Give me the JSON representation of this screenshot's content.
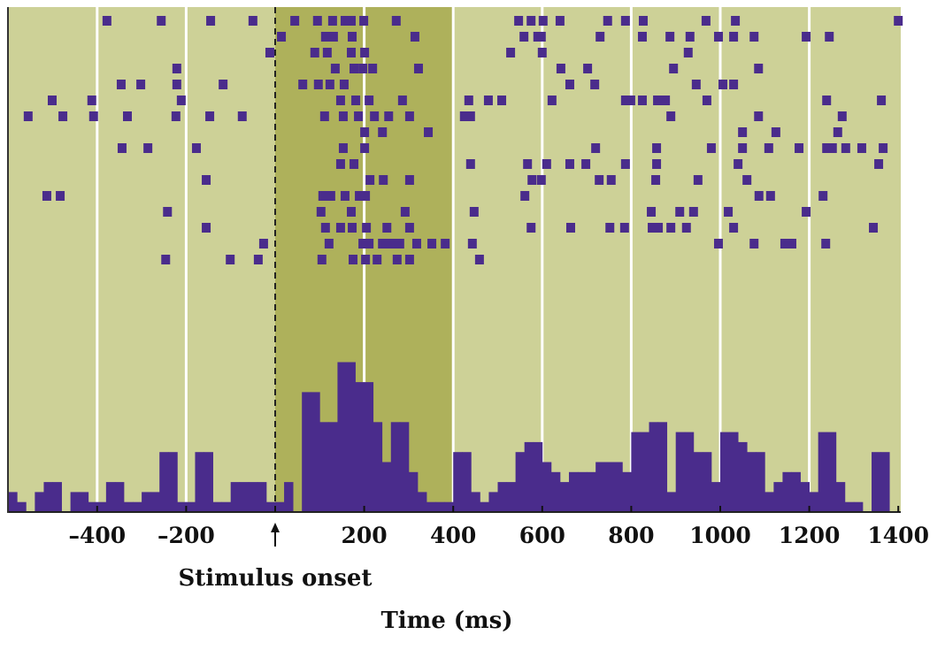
{
  "chart_data": {
    "type": "raster_and_histogram",
    "title": "",
    "xlabel": "Time (ms)",
    "ylabel": "",
    "xlim": [
      -600,
      1410
    ],
    "x_ticks": [
      -400,
      -200,
      200,
      400,
      600,
      800,
      1000,
      1200,
      1400
    ],
    "x_tick_labels": [
      "–400",
      "–200",
      "200",
      "400",
      "600",
      "800",
      "1000",
      "1200",
      "1400"
    ],
    "gridlines_ms": [
      -400,
      -200,
      200,
      400,
      600,
      800,
      1000,
      1200
    ],
    "annotation": {
      "label": "Stimulus onset",
      "x": 0,
      "marker": "up-arrow with dashed line"
    },
    "highlight_window_ms": [
      0,
      400
    ],
    "colors": {
      "background": "#cdd197",
      "highlight": "#aeb15b",
      "spikes": "#4a2c8c",
      "gridline": "#ffffff"
    },
    "raster": {
      "trials": [
        [
          -378,
          -256,
          -145,
          -50,
          44,
          95,
          129,
          157,
          171,
          199,
          272,
          547,
          575,
          602,
          640,
          747,
          787,
          827,
          968,
          1034,
          1400
        ],
        [
          14,
          113,
          131,
          173,
          314,
          559,
          590,
          598,
          730,
          825,
          887,
          932,
          996,
          1030,
          1076,
          1193,
          1245
        ],
        [
          -12,
          89,
          117,
          171,
          201,
          529,
          600,
          928
        ],
        [
          -221,
          135,
          177,
          197,
          219,
          322,
          642,
          702,
          895,
          1086
        ],
        [
          -346,
          -302,
          -221,
          -117,
          62,
          97,
          123,
          155,
          662,
          718,
          946,
          1006,
          1030
        ],
        [
          -501,
          -412,
          -211,
          147,
          181,
          211,
          286,
          435,
          479,
          509,
          622,
          787,
          799,
          825,
          859,
          877,
          970,
          1239,
          1362
        ],
        [
          -555,
          -477,
          -408,
          -332,
          -223,
          -147,
          -74,
          111,
          153,
          187,
          223,
          255,
          302,
          425,
          439,
          889,
          1086,
          1274
        ],
        [
          201,
          241,
          344,
          1050,
          1125,
          1264
        ],
        [
          -344,
          -286,
          -177,
          153,
          201,
          720,
          857,
          980,
          1050,
          1109,
          1177,
          1239,
          1252,
          1282,
          1318,
          1366
        ],
        [
          147,
          177,
          439,
          567,
          610,
          662,
          698,
          787,
          857,
          1040,
          1356
        ],
        [
          -155,
          213,
          243,
          302,
          577,
          598,
          728,
          755,
          855,
          950,
          1060
        ],
        [
          -513,
          -483,
          107,
          125,
          157,
          189,
          203,
          561,
          1087,
          1113,
          1231
        ],
        [
          -242,
          103,
          171,
          292,
          447,
          845,
          909,
          940,
          1018,
          1193
        ],
        [
          -155,
          113,
          147,
          173,
          205,
          251,
          302,
          575,
          664,
          752,
          785,
          847,
          861,
          889,
          924,
          1030,
          1344
        ],
        [
          -26,
          121,
          197,
          211,
          241,
          253,
          270,
          280,
          318,
          352,
          382,
          443,
          996,
          1076,
          1145,
          1161,
          1237
        ],
        [
          -246,
          -101,
          -38,
          105,
          175,
          203,
          229,
          274,
          302,
          459
        ]
      ]
    },
    "histogram": {
      "bin_start_ms": -600,
      "bin_width_ms": 20,
      "counts": [
        2,
        1,
        0,
        2,
        3,
        3,
        0,
        2,
        2,
        1,
        1,
        3,
        3,
        1,
        1,
        2,
        2,
        6,
        6,
        1,
        1,
        6,
        6,
        1,
        1,
        3,
        3,
        3,
        3,
        1,
        1,
        3,
        0,
        12,
        12,
        9,
        9,
        15,
        15,
        13,
        13,
        9,
        5,
        9,
        9,
        4,
        2,
        1,
        1,
        1,
        6,
        6,
        2,
        1,
        2,
        3,
        3,
        6,
        7,
        7,
        5,
        4,
        3,
        4,
        4,
        4,
        5,
        5,
        5,
        4,
        8,
        8,
        9,
        9,
        2,
        8,
        8,
        6,
        6,
        3,
        8,
        8,
        7,
        6,
        6,
        2,
        3,
        4,
        4,
        3,
        2,
        8,
        8,
        3,
        1,
        1,
        0,
        6,
        6,
        0,
        0
      ]
    }
  }
}
